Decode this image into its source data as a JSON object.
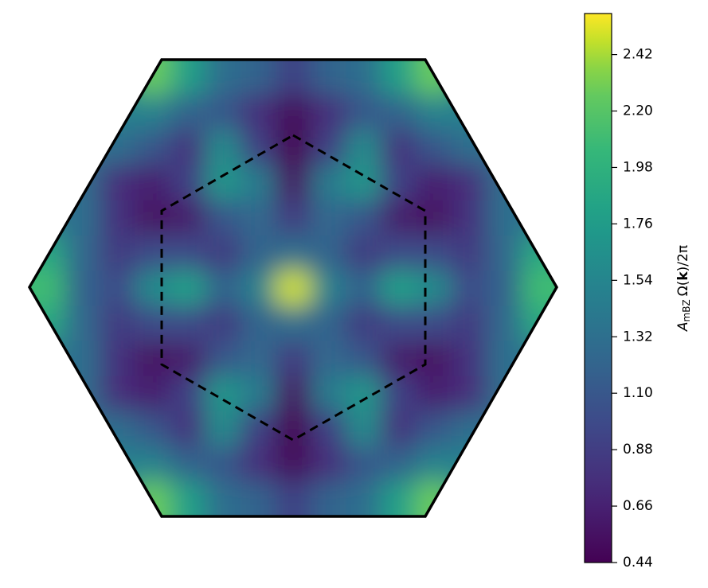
{
  "chart_data": {
    "type": "heatmap",
    "colormap": "viridis",
    "clim": [
      0.44,
      2.58
    ],
    "colorbar_ticks": [
      0.44,
      0.66,
      0.88,
      {
        "value": 1.1,
        "label": "1.10"
      },
      1.32,
      1.54,
      1.76,
      1.98,
      {
        "value": 2.2,
        "label": "2.20"
      },
      2.42
    ],
    "colorbar_label": {
      "symbol": "A",
      "subscript": "mBZ",
      "text_before": "Ω(",
      "bold": "k",
      "text_after": ")/2π"
    },
    "z": [
      [
        1.3,
        1.3,
        1.6,
        2.3,
        1.8,
        1.3,
        1.2,
        0.9,
        1.2,
        1.3,
        1.8,
        2.3,
        1.6,
        1.3,
        1.3
      ],
      [
        1.3,
        1.3,
        1.5,
        1.5,
        1.2,
        1.1,
        0.75,
        0.5,
        0.75,
        1.1,
        1.2,
        1.5,
        1.5,
        1.3,
        1.3
      ],
      [
        1.3,
        1.3,
        1.3,
        1.1,
        0.8,
        1.6,
        0.9,
        0.45,
        0.9,
        1.6,
        0.8,
        1.1,
        1.3,
        1.3,
        1.3
      ],
      [
        1.3,
        1.3,
        0.75,
        0.64,
        0.9,
        1.7,
        1.45,
        0.55,
        1.45,
        1.7,
        0.9,
        0.64,
        0.75,
        1.3,
        1.3
      ],
      [
        1.4,
        1.3,
        0.8,
        0.56,
        0.62,
        1.1,
        1.25,
        0.85,
        1.25,
        1.1,
        0.62,
        0.56,
        0.8,
        1.3,
        1.4
      ],
      [
        1.9,
        1.25,
        0.85,
        1.0,
        1.0,
        0.85,
        1.2,
        1.3,
        1.2,
        0.85,
        1.0,
        1.0,
        0.85,
        1.25,
        1.9
      ],
      [
        2.1,
        1.2,
        1.0,
        1.6,
        1.8,
        1.2,
        1.5,
        2.5,
        1.5,
        1.2,
        1.8,
        1.6,
        1.0,
        1.2,
        2.1
      ],
      [
        1.9,
        1.25,
        0.85,
        1.0,
        1.0,
        0.85,
        1.2,
        1.3,
        1.2,
        0.85,
        1.0,
        1.0,
        0.85,
        1.25,
        1.9
      ],
      [
        1.4,
        1.3,
        0.8,
        0.56,
        0.62,
        1.1,
        1.25,
        0.85,
        1.25,
        1.1,
        0.62,
        0.56,
        0.8,
        1.3,
        1.4
      ],
      [
        1.3,
        1.3,
        0.75,
        0.64,
        0.9,
        1.7,
        1.45,
        0.55,
        1.45,
        1.7,
        0.9,
        0.64,
        0.75,
        1.3,
        1.3
      ],
      [
        1.3,
        1.3,
        1.3,
        1.1,
        0.8,
        1.6,
        0.9,
        0.45,
        0.9,
        1.6,
        0.8,
        1.1,
        1.3,
        1.3,
        1.3
      ],
      [
        1.3,
        1.3,
        1.5,
        1.5,
        1.2,
        1.1,
        0.75,
        0.5,
        0.75,
        1.1,
        1.2,
        1.5,
        1.5,
        1.3,
        1.3
      ],
      [
        1.3,
        1.3,
        1.6,
        2.3,
        1.8,
        1.3,
        1.2,
        0.9,
        1.2,
        1.3,
        1.8,
        2.3,
        1.6,
        1.3,
        1.3
      ]
    ]
  }
}
